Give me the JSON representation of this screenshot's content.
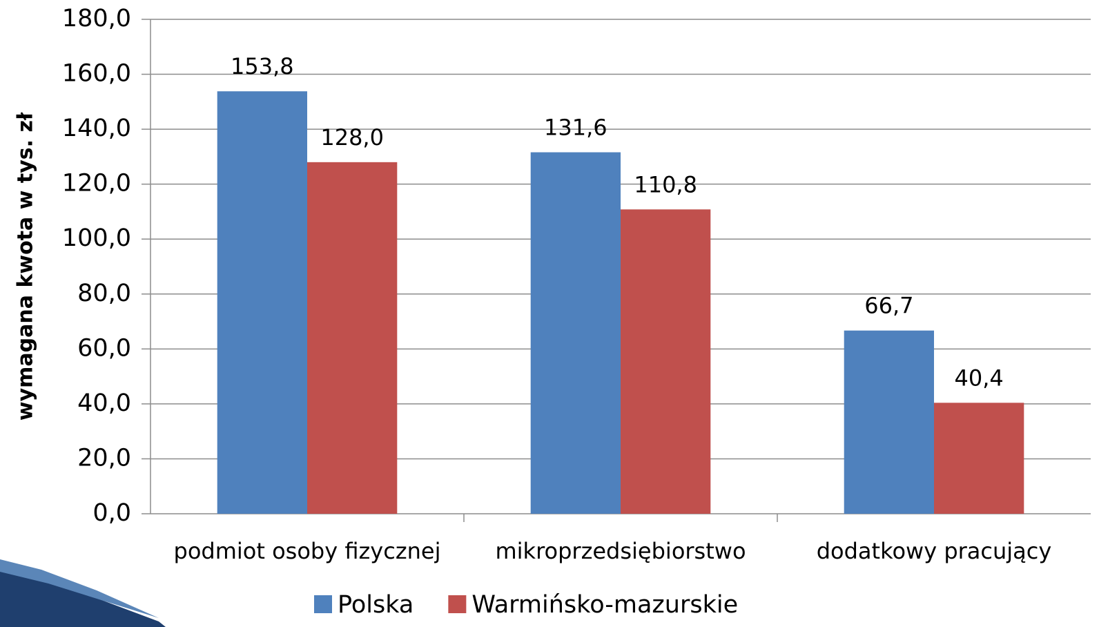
{
  "chart_data": {
    "type": "bar",
    "y_axis_label": "wymagana kwota w tys. zł",
    "categories": [
      "podmiot osoby fizycznej",
      "mikroprzedsiębiorstwo",
      "dodatkowy pracujący"
    ],
    "series": [
      {
        "name": "Polska",
        "color": "#4f81bd",
        "values": [
          153.8,
          131.6,
          66.7
        ],
        "value_labels": [
          "153,8",
          "131,6",
          "66,7"
        ]
      },
      {
        "name": "Warmińsko-mazurskie",
        "color": "#c0504d",
        "values": [
          128.0,
          110.8,
          40.4
        ],
        "value_labels": [
          "128,0",
          "110,8",
          "40,4"
        ]
      }
    ],
    "ylim": [
      0,
      180
    ],
    "yticks": [
      {
        "value": 0,
        "label": "0,0"
      },
      {
        "value": 20,
        "label": "20,0"
      },
      {
        "value": 40,
        "label": "40,0"
      },
      {
        "value": 60,
        "label": "60,0"
      },
      {
        "value": 80,
        "label": "80,0"
      },
      {
        "value": 100,
        "label": "100,0"
      },
      {
        "value": 120,
        "label": "120,0"
      },
      {
        "value": 140,
        "label": "140,0"
      },
      {
        "value": 160,
        "label": "160,0"
      },
      {
        "value": 180,
        "label": "180,0"
      }
    ],
    "grid": true,
    "legend": "bottom"
  }
}
